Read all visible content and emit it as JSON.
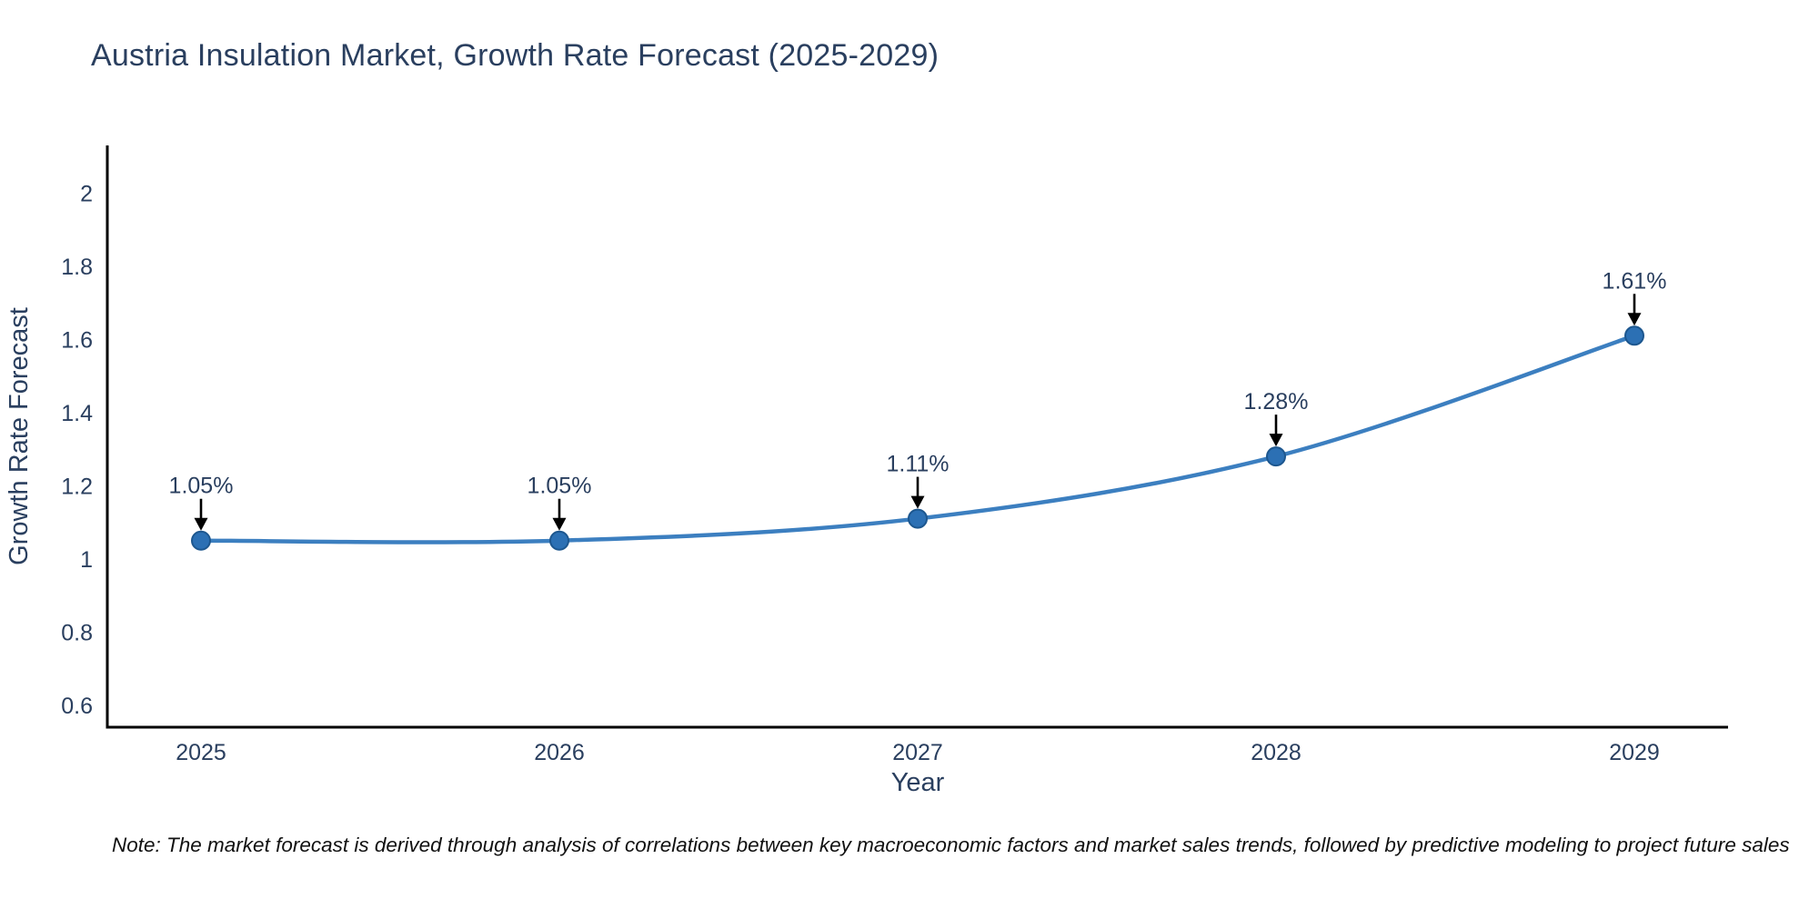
{
  "chart_data": {
    "type": "line",
    "title": "Austria Insulation Market, Growth Rate Forecast (2025-2029)",
    "x": [
      2025,
      2026,
      2027,
      2028,
      2029
    ],
    "series": [
      {
        "name": "Growth Rate Forecast",
        "values": [
          1.05,
          1.05,
          1.11,
          1.28,
          1.61
        ]
      }
    ],
    "point_labels": [
      "1.05%",
      "1.05%",
      "1.11%",
      "1.28%",
      "1.61%"
    ],
    "xlabel": "Year",
    "ylabel": "Growth Rate Forecast",
    "yticks": [
      0.6,
      0.8,
      1,
      1.2,
      1.4,
      1.6,
      1.8,
      2
    ],
    "ylim": [
      0.54,
      2.13
    ],
    "line_shape": "spline",
    "grid": false,
    "legend": "none",
    "note": "Note: The market forecast is derived through analysis of correlations between key macroeconomic factors and market sales trends, followed by predictive modeling to project future sales",
    "colors": {
      "line": "#3c7fc0",
      "marker_fill": "#2c70b4",
      "marker_edge": "#1d578f",
      "axis_line": "#000000",
      "tick_text": "#2a3f5f",
      "axis_title_text": "#2a3f5f",
      "annotation_text": "#2a3f5f",
      "annotation_arrow": "#000000",
      "note_text": "#111111"
    }
  }
}
